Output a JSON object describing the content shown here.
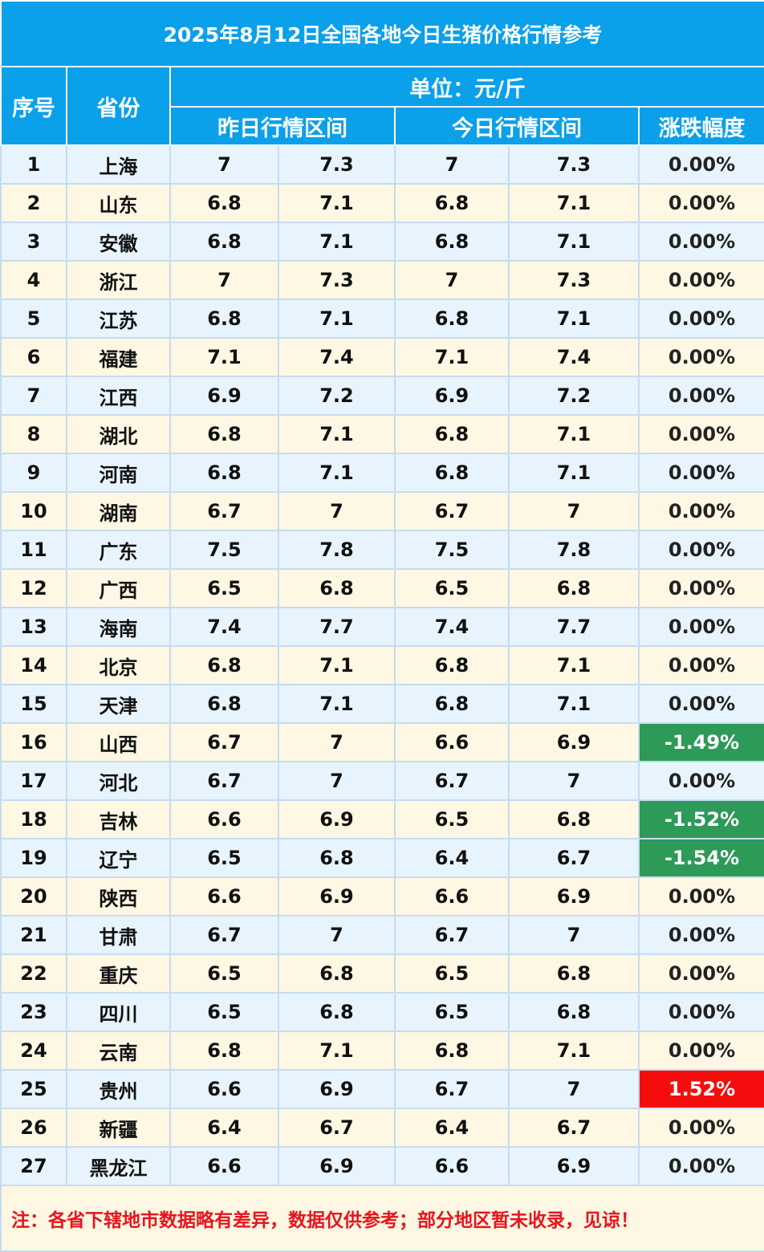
{
  "title": "2025年8月12日全国各地今日生猪价格行情参考",
  "headers": {
    "index": "序号",
    "province": "省份",
    "unit": "单位：元/斤",
    "yesterday_range": "昨日行情区间",
    "today_range": "今日行情区间",
    "change": "涨跌幅度"
  },
  "colors": {
    "header_bg": "#0aa0ea",
    "row_blue": "#e7f4fd",
    "row_cream": "#fdf7e3",
    "down": "#2e9a58",
    "up": "#f50d0d",
    "note": "#e8141c"
  },
  "rows": [
    {
      "no": "1",
      "province": "上海",
      "y_low": "7",
      "y_high": "7.3",
      "t_low": "7",
      "t_high": "7.3",
      "change": "0.00%",
      "trend": "flat"
    },
    {
      "no": "2",
      "province": "山东",
      "y_low": "6.8",
      "y_high": "7.1",
      "t_low": "6.8",
      "t_high": "7.1",
      "change": "0.00%",
      "trend": "flat"
    },
    {
      "no": "3",
      "province": "安徽",
      "y_low": "6.8",
      "y_high": "7.1",
      "t_low": "6.8",
      "t_high": "7.1",
      "change": "0.00%",
      "trend": "flat"
    },
    {
      "no": "4",
      "province": "浙江",
      "y_low": "7",
      "y_high": "7.3",
      "t_low": "7",
      "t_high": "7.3",
      "change": "0.00%",
      "trend": "flat"
    },
    {
      "no": "5",
      "province": "江苏",
      "y_low": "6.8",
      "y_high": "7.1",
      "t_low": "6.8",
      "t_high": "7.1",
      "change": "0.00%",
      "trend": "flat"
    },
    {
      "no": "6",
      "province": "福建",
      "y_low": "7.1",
      "y_high": "7.4",
      "t_low": "7.1",
      "t_high": "7.4",
      "change": "0.00%",
      "trend": "flat"
    },
    {
      "no": "7",
      "province": "江西",
      "y_low": "6.9",
      "y_high": "7.2",
      "t_low": "6.9",
      "t_high": "7.2",
      "change": "0.00%",
      "trend": "flat"
    },
    {
      "no": "8",
      "province": "湖北",
      "y_low": "6.8",
      "y_high": "7.1",
      "t_low": "6.8",
      "t_high": "7.1",
      "change": "0.00%",
      "trend": "flat"
    },
    {
      "no": "9",
      "province": "河南",
      "y_low": "6.8",
      "y_high": "7.1",
      "t_low": "6.8",
      "t_high": "7.1",
      "change": "0.00%",
      "trend": "flat"
    },
    {
      "no": "10",
      "province": "湖南",
      "y_low": "6.7",
      "y_high": "7",
      "t_low": "6.7",
      "t_high": "7",
      "change": "0.00%",
      "trend": "flat"
    },
    {
      "no": "11",
      "province": "广东",
      "y_low": "7.5",
      "y_high": "7.8",
      "t_low": "7.5",
      "t_high": "7.8",
      "change": "0.00%",
      "trend": "flat"
    },
    {
      "no": "12",
      "province": "广西",
      "y_low": "6.5",
      "y_high": "6.8",
      "t_low": "6.5",
      "t_high": "6.8",
      "change": "0.00%",
      "trend": "flat"
    },
    {
      "no": "13",
      "province": "海南",
      "y_low": "7.4",
      "y_high": "7.7",
      "t_low": "7.4",
      "t_high": "7.7",
      "change": "0.00%",
      "trend": "flat"
    },
    {
      "no": "14",
      "province": "北京",
      "y_low": "6.8",
      "y_high": "7.1",
      "t_low": "6.8",
      "t_high": "7.1",
      "change": "0.00%",
      "trend": "flat"
    },
    {
      "no": "15",
      "province": "天津",
      "y_low": "6.8",
      "y_high": "7.1",
      "t_low": "6.8",
      "t_high": "7.1",
      "change": "0.00%",
      "trend": "flat"
    },
    {
      "no": "16",
      "province": "山西",
      "y_low": "6.7",
      "y_high": "7",
      "t_low": "6.6",
      "t_high": "6.9",
      "change": "-1.49%",
      "trend": "down"
    },
    {
      "no": "17",
      "province": "河北",
      "y_low": "6.7",
      "y_high": "7",
      "t_low": "6.7",
      "t_high": "7",
      "change": "0.00%",
      "trend": "flat"
    },
    {
      "no": "18",
      "province": "吉林",
      "y_low": "6.6",
      "y_high": "6.9",
      "t_low": "6.5",
      "t_high": "6.8",
      "change": "-1.52%",
      "trend": "down"
    },
    {
      "no": "19",
      "province": "辽宁",
      "y_low": "6.5",
      "y_high": "6.8",
      "t_low": "6.4",
      "t_high": "6.7",
      "change": "-1.54%",
      "trend": "down"
    },
    {
      "no": "20",
      "province": "陕西",
      "y_low": "6.6",
      "y_high": "6.9",
      "t_low": "6.6",
      "t_high": "6.9",
      "change": "0.00%",
      "trend": "flat"
    },
    {
      "no": "21",
      "province": "甘肃",
      "y_low": "6.7",
      "y_high": "7",
      "t_low": "6.7",
      "t_high": "7",
      "change": "0.00%",
      "trend": "flat"
    },
    {
      "no": "22",
      "province": "重庆",
      "y_low": "6.5",
      "y_high": "6.8",
      "t_low": "6.5",
      "t_high": "6.8",
      "change": "0.00%",
      "trend": "flat"
    },
    {
      "no": "23",
      "province": "四川",
      "y_low": "6.5",
      "y_high": "6.8",
      "t_low": "6.5",
      "t_high": "6.8",
      "change": "0.00%",
      "trend": "flat"
    },
    {
      "no": "24",
      "province": "云南",
      "y_low": "6.8",
      "y_high": "7.1",
      "t_low": "6.8",
      "t_high": "7.1",
      "change": "0.00%",
      "trend": "flat"
    },
    {
      "no": "25",
      "province": "贵州",
      "y_low": "6.6",
      "y_high": "6.9",
      "t_low": "6.7",
      "t_high": "7",
      "change": "1.52%",
      "trend": "up"
    },
    {
      "no": "26",
      "province": "新疆",
      "y_low": "6.4",
      "y_high": "6.7",
      "t_low": "6.4",
      "t_high": "6.7",
      "change": "0.00%",
      "trend": "flat"
    },
    {
      "no": "27",
      "province": "黑龙江",
      "y_low": "6.6",
      "y_high": "6.9",
      "t_low": "6.6",
      "t_high": "6.9",
      "change": "0.00%",
      "trend": "flat"
    }
  ],
  "note": "注：各省下辖地市数据略有差异，数据仅供参考；部分地区暂未收录，见谅！"
}
